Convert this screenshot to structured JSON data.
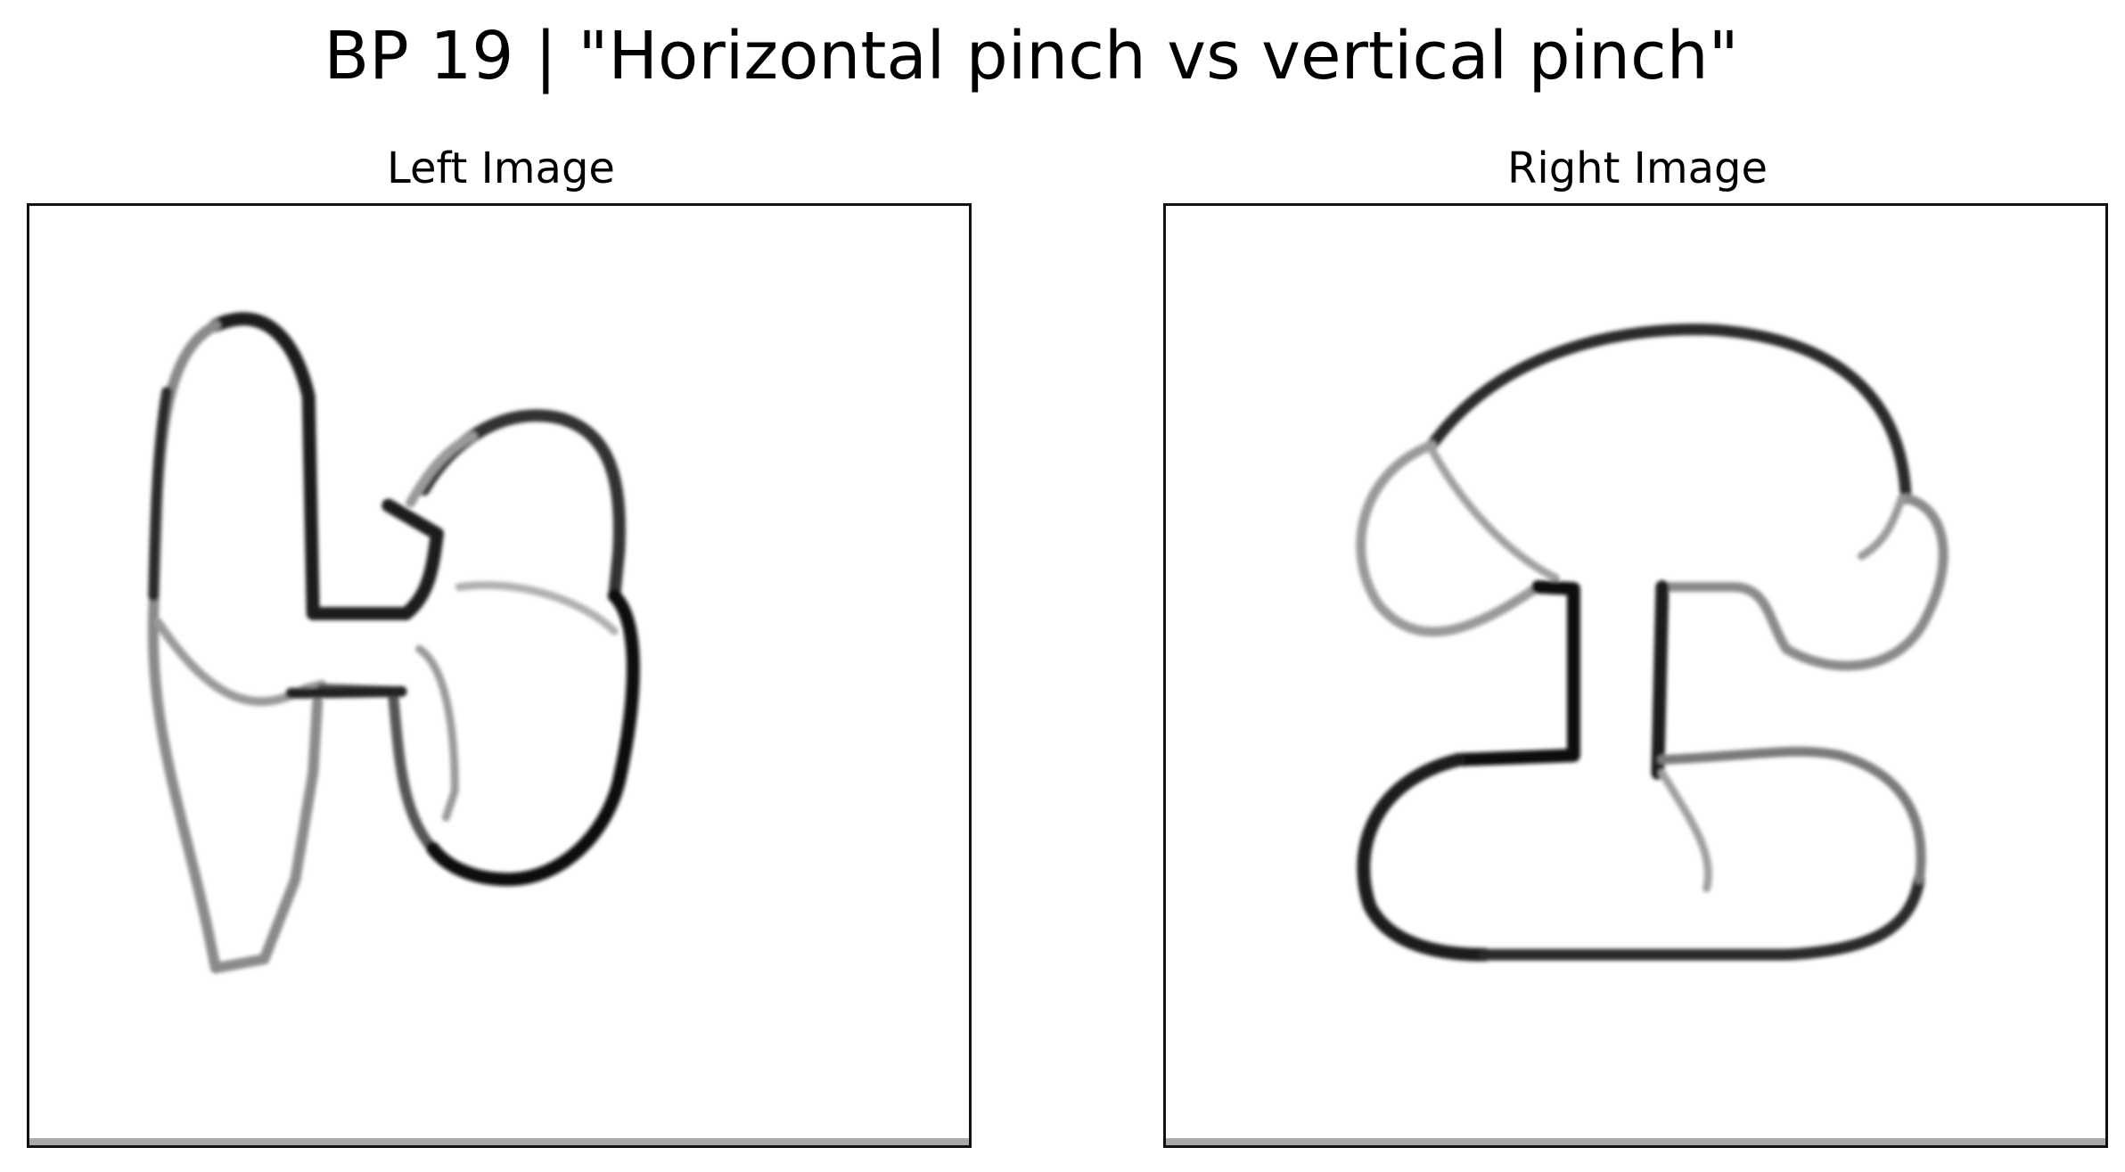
{
  "figure": {
    "title": "BP 19 | \"Horizontal pinch vs vertical pinch\""
  },
  "panels": {
    "left": {
      "title": "Left Image"
    },
    "right": {
      "title": "Right Image"
    }
  },
  "colors": {
    "background": "#ffffff",
    "stroke_dark": "#111111",
    "stroke_mid": "#555555",
    "stroke_light": "#9a9a9a",
    "frame": "#111111"
  }
}
